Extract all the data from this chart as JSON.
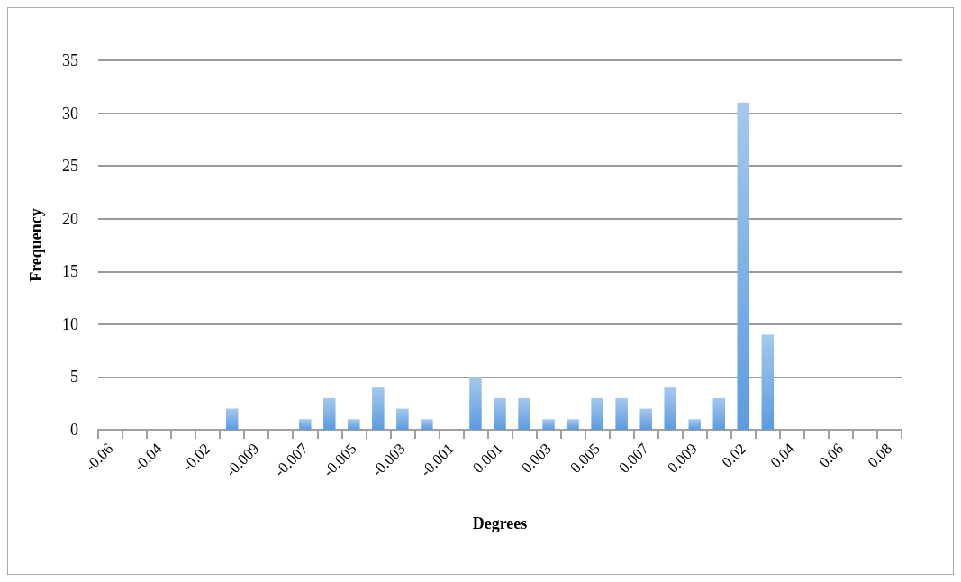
{
  "chart_data": {
    "type": "bar",
    "xlabel": "Degrees",
    "ylabel": "Frequency",
    "categories": [
      "-0.06",
      null,
      "-0.04",
      null,
      "-0.02",
      null,
      "-0.009",
      null,
      "-0.007",
      null,
      "-0.005",
      null,
      "-0.003",
      null,
      "-0.001",
      null,
      "0.001",
      null,
      "0.003",
      null,
      "0.005",
      null,
      "0.007",
      null,
      "0.009",
      null,
      "0.02",
      null,
      "0.04",
      null,
      "0.06",
      null,
      "0.08"
    ],
    "values": [
      0,
      0,
      0,
      0,
      0,
      2,
      0,
      0,
      1,
      3,
      1,
      4,
      2,
      1,
      0,
      5,
      3,
      3,
      1,
      1,
      3,
      3,
      2,
      4,
      1,
      3,
      31,
      9,
      0,
      0,
      0,
      0,
      0
    ],
    "color": "#5b9bdf",
    "ylim": [
      0,
      35
    ],
    "yticks": [
      0,
      5,
      10,
      15,
      20,
      25,
      30,
      35
    ],
    "grid": "y"
  }
}
